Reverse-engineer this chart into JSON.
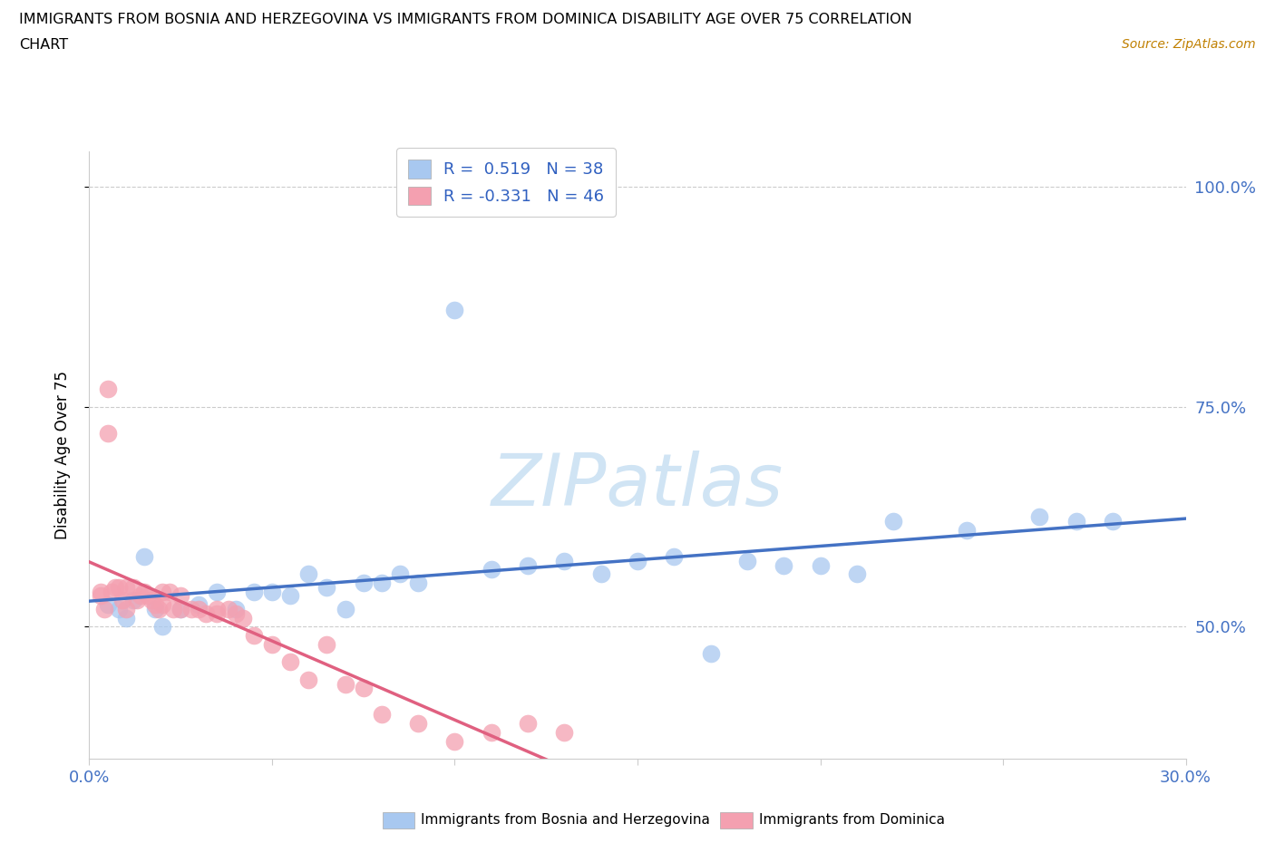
{
  "title_line1": "IMMIGRANTS FROM BOSNIA AND HERZEGOVINA VS IMMIGRANTS FROM DOMINICA DISABILITY AGE OVER 75 CORRELATION",
  "title_line2": "CHART",
  "source": "Source: ZipAtlas.com",
  "ylabel": "Disability Age Over 75",
  "legend_bosnia_label": "Immigrants from Bosnia and Herzegovina",
  "legend_dominica_label": "Immigrants from Dominica",
  "R_bosnia": 0.519,
  "N_bosnia": 38,
  "R_dominica": -0.331,
  "N_dominica": 46,
  "xmin": 0.0,
  "xmax": 0.3,
  "ymin": 0.35,
  "ymax": 1.04,
  "yticks": [
    0.5,
    0.75,
    1.0
  ],
  "ytick_labels": [
    "50.0%",
    "75.0%",
    "100.0%"
  ],
  "yline_vals": [
    0.5,
    0.75,
    1.0
  ],
  "xticks": [
    0.0,
    0.05,
    0.1,
    0.15,
    0.2,
    0.25,
    0.3
  ],
  "xtick_labels": [
    "0.0%",
    "",
    "",
    "",
    "",
    "",
    "30.0%"
  ],
  "bosnia_color": "#a8c8f0",
  "dominica_color": "#f4a0b0",
  "bosnia_line_color": "#4472c4",
  "dominica_line_color": "#e06080",
  "dominica_dash_color": "#f0b0c0",
  "watermark_color": "#d0e4f4",
  "background_color": "#ffffff",
  "bosnia_points_x": [
    0.005,
    0.008,
    0.01,
    0.012,
    0.015,
    0.018,
    0.02,
    0.025,
    0.03,
    0.035,
    0.04,
    0.045,
    0.05,
    0.055,
    0.06,
    0.065,
    0.07,
    0.075,
    0.08,
    0.085,
    0.09,
    0.1,
    0.11,
    0.12,
    0.13,
    0.14,
    0.15,
    0.16,
    0.17,
    0.18,
    0.19,
    0.2,
    0.21,
    0.22,
    0.24,
    0.26,
    0.27,
    0.28
  ],
  "bosnia_points_y": [
    0.525,
    0.52,
    0.51,
    0.53,
    0.58,
    0.52,
    0.5,
    0.52,
    0.525,
    0.54,
    0.52,
    0.54,
    0.54,
    0.535,
    0.56,
    0.545,
    0.52,
    0.55,
    0.55,
    0.56,
    0.55,
    0.86,
    0.565,
    0.57,
    0.575,
    0.56,
    0.575,
    0.58,
    0.47,
    0.575,
    0.57,
    0.57,
    0.56,
    0.62,
    0.61,
    0.625,
    0.62,
    0.62
  ],
  "dominica_points_x": [
    0.003,
    0.003,
    0.004,
    0.005,
    0.005,
    0.006,
    0.007,
    0.008,
    0.009,
    0.01,
    0.01,
    0.012,
    0.013,
    0.014,
    0.015,
    0.016,
    0.017,
    0.018,
    0.019,
    0.02,
    0.02,
    0.022,
    0.023,
    0.025,
    0.025,
    0.028,
    0.03,
    0.032,
    0.035,
    0.035,
    0.038,
    0.04,
    0.042,
    0.045,
    0.05,
    0.055,
    0.06,
    0.065,
    0.07,
    0.075,
    0.08,
    0.09,
    0.1,
    0.11,
    0.12,
    0.13
  ],
  "dominica_points_y": [
    0.54,
    0.535,
    0.52,
    0.77,
    0.72,
    0.54,
    0.545,
    0.545,
    0.53,
    0.52,
    0.545,
    0.545,
    0.53,
    0.535,
    0.54,
    0.535,
    0.53,
    0.525,
    0.52,
    0.525,
    0.54,
    0.54,
    0.52,
    0.52,
    0.535,
    0.52,
    0.52,
    0.515,
    0.515,
    0.52,
    0.52,
    0.515,
    0.51,
    0.49,
    0.48,
    0.46,
    0.44,
    0.48,
    0.435,
    0.43,
    0.4,
    0.39,
    0.37,
    0.38,
    0.39,
    0.38
  ]
}
